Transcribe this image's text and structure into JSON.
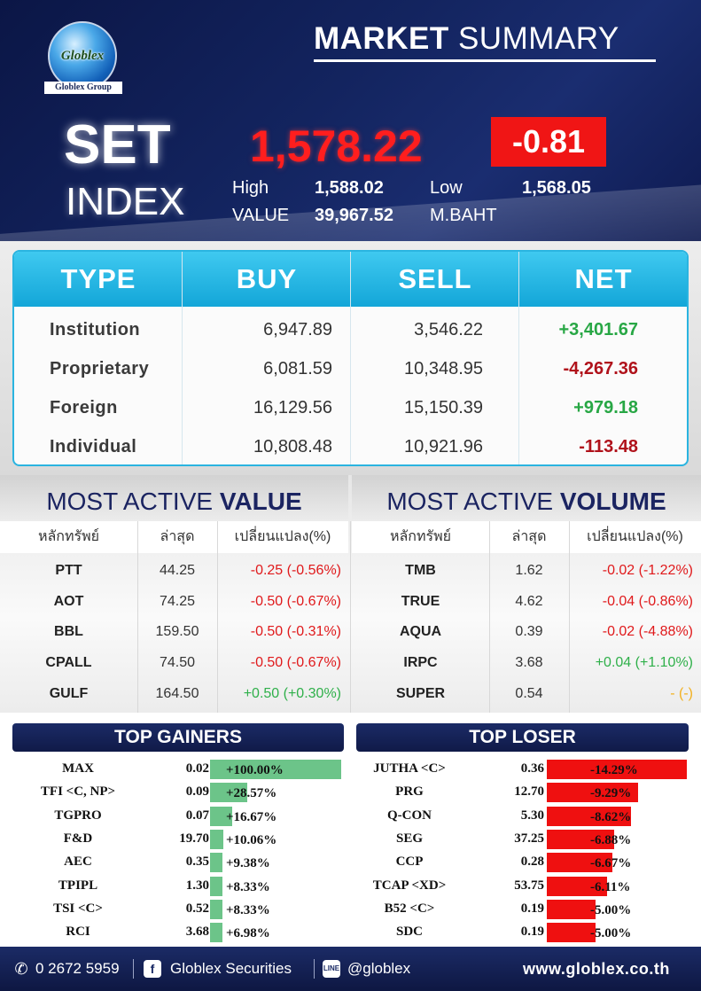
{
  "logo": {
    "word": "Globlex",
    "group": "Globlex Group"
  },
  "title": {
    "bold": "MARKET",
    "rest": " SUMMARY"
  },
  "index": {
    "name1": "SET",
    "name2": "INDEX",
    "value": "1,578.22",
    "change": "-0.81",
    "high_label": "High",
    "high": "1,588.02",
    "low_label": "Low",
    "low": "1,568.05",
    "value_label": "VALUE",
    "value_amount": "39,967.52",
    "unit": "M.BAHT"
  },
  "investors": {
    "headers": [
      "TYPE",
      "BUY",
      "SELL",
      "NET"
    ],
    "rows": [
      {
        "type": "Institution",
        "buy": "6,947.89",
        "sell": "3,546.22",
        "net": "+3,401.67",
        "dir": "up"
      },
      {
        "type": "Proprietary",
        "buy": "6,081.59",
        "sell": "10,348.95",
        "net": "-4,267.36",
        "dir": "down"
      },
      {
        "type": "Foreign",
        "buy": "16,129.56",
        "sell": "15,150.39",
        "net": "+979.18",
        "dir": "up"
      },
      {
        "type": "Individual",
        "buy": "10,808.48",
        "sell": "10,921.96",
        "net": "-113.48",
        "dir": "down"
      }
    ]
  },
  "most_active_value": {
    "title_light": "MOST ACTIVE ",
    "title_bold": "VALUE",
    "col_symbol": "หลักทรัพย์",
    "col_last": "ล่าสุด",
    "col_change": "เปลี่ยนแปลง(%)",
    "rows": [
      {
        "symbol": "PTT",
        "last": "44.25",
        "change": "-0.25 (-0.56%)",
        "dir": "down"
      },
      {
        "symbol": "AOT",
        "last": "74.25",
        "change": "-0.50 (-0.67%)",
        "dir": "down"
      },
      {
        "symbol": "BBL",
        "last": "159.50",
        "change": "-0.50 (-0.31%)",
        "dir": "down"
      },
      {
        "symbol": "CPALL",
        "last": "74.50",
        "change": "-0.50 (-0.67%)",
        "dir": "down"
      },
      {
        "symbol": "GULF",
        "last": "164.50",
        "change": "+0.50 (+0.30%)",
        "dir": "up"
      }
    ]
  },
  "most_active_volume": {
    "title_light": "MOST ACTIVE ",
    "title_bold": "VOLUME",
    "col_symbol": "หลักทรัพย์",
    "col_last": "ล่าสุด",
    "col_change": "เปลี่ยนแปลง(%)",
    "rows": [
      {
        "symbol": "TMB",
        "last": "1.62",
        "change": "-0.02 (-1.22%)",
        "dir": "down"
      },
      {
        "symbol": "TRUE",
        "last": "4.62",
        "change": "-0.04 (-0.86%)",
        "dir": "down"
      },
      {
        "symbol": "AQUA",
        "last": "0.39",
        "change": "-0.02 (-4.88%)",
        "dir": "down"
      },
      {
        "symbol": "IRPC",
        "last": "3.68",
        "change": "+0.04 (+1.10%)",
        "dir": "up"
      },
      {
        "symbol": "SUPER",
        "last": "0.54",
        "change": "- (-)",
        "dir": "flat"
      }
    ]
  },
  "top_gainers": {
    "title": "TOP GAINERS",
    "rows": [
      {
        "symbol": "MAX",
        "price": "0.02",
        "pct": "+100.00%",
        "pct_value": 100.0
      },
      {
        "symbol": "TFI <C, NP>",
        "price": "0.09",
        "pct": "+28.57%",
        "pct_value": 28.57
      },
      {
        "symbol": "TGPRO",
        "price": "0.07",
        "pct": "+16.67%",
        "pct_value": 16.67
      },
      {
        "symbol": "F&D",
        "price": "19.70",
        "pct": "+10.06%",
        "pct_value": 10.06
      },
      {
        "symbol": "AEC",
        "price": "0.35",
        "pct": "+9.38%",
        "pct_value": 9.38
      },
      {
        "symbol": "TPIPL",
        "price": "1.30",
        "pct": "+8.33%",
        "pct_value": 8.33
      },
      {
        "symbol": "TSI <C>",
        "price": "0.52",
        "pct": "+8.33%",
        "pct_value": 8.33
      },
      {
        "symbol": "RCI",
        "price": "3.68",
        "pct": "+6.98%",
        "pct_value": 6.98
      }
    ]
  },
  "top_loser": {
    "title": "TOP LOSER",
    "rows": [
      {
        "symbol": "JUTHA <C>",
        "price": "0.36",
        "pct": "-14.29%",
        "pct_value": 14.29
      },
      {
        "symbol": "PRG",
        "price": "12.70",
        "pct": "-9.29%",
        "pct_value": 9.29
      },
      {
        "symbol": "Q-CON",
        "price": "5.30",
        "pct": "-8.62%",
        "pct_value": 8.62
      },
      {
        "symbol": "SEG",
        "price": "37.25",
        "pct": "-6.88%",
        "pct_value": 6.88
      },
      {
        "symbol": "CCP",
        "price": "0.28",
        "pct": "-6.67%",
        "pct_value": 6.67
      },
      {
        "symbol": "TCAP <XD>",
        "price": "53.75",
        "pct": "-6.11%",
        "pct_value": 6.11
      },
      {
        "symbol": "B52 <C>",
        "price": "0.19",
        "pct": "-5.00%",
        "pct_value": 5.0
      },
      {
        "symbol": "SDC",
        "price": "0.19",
        "pct": "-5.00%",
        "pct_value": 5.0
      }
    ]
  },
  "footer": {
    "phone": "0 2672 5959",
    "facebook": "Globlex Securities",
    "line": "@globlex",
    "website": "www.globlex.co.th"
  },
  "colors": {
    "brand_navy": "#1b2b66",
    "up": "#2fb04a",
    "down": "#e0191b",
    "flat": "#f2b01e",
    "net_up": "#28a745",
    "net_down": "#b0121b",
    "header_blue": "#13a6d8"
  }
}
